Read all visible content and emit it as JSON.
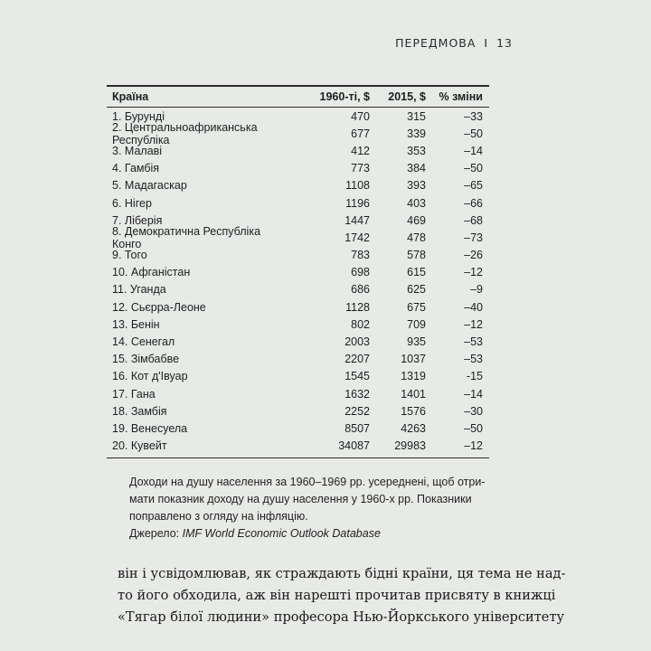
{
  "running_head": {
    "section": "ПЕРЕДМОВА",
    "separator": "I",
    "page_number": "13"
  },
  "table": {
    "columns": [
      "Країна",
      "1960-ті, $",
      "2015, $",
      "% зміни"
    ],
    "rows": [
      [
        "1. Бурунді",
        "470",
        "315",
        "–33"
      ],
      [
        "2. Центральноафриканська Республіка",
        "677",
        "339",
        "–50"
      ],
      [
        "3. Малаві",
        "412",
        "353",
        "–14"
      ],
      [
        "4. Гамбія",
        "773",
        "384",
        "–50"
      ],
      [
        "5. Мадагаскар",
        "1108",
        "393",
        "–65"
      ],
      [
        "6. Нігер",
        "1196",
        "403",
        "–66"
      ],
      [
        "7. Ліберія",
        "1447",
        "469",
        "–68"
      ],
      [
        "8. Демократична Республіка Конго",
        "1742",
        "478",
        "–73"
      ],
      [
        "9. Того",
        "783",
        "578",
        "–26"
      ],
      [
        "10. Афганістан",
        "698",
        "615",
        "–12"
      ],
      [
        "11. Уганда",
        "686",
        "625",
        "–9"
      ],
      [
        "12. Сьєрра-Леоне",
        "1128",
        "675",
        "–40"
      ],
      [
        "13. Бенін",
        "802",
        "709",
        "–12"
      ],
      [
        "14. Сенегал",
        "2003",
        "935",
        "–53"
      ],
      [
        "15. Зімбабве",
        "2207",
        "1037",
        "–53"
      ],
      [
        "16. Кот д'Івуар",
        "1545",
        "1319",
        "-15"
      ],
      [
        "17. Гана",
        "1632",
        "1401",
        "–14"
      ],
      [
        "18. Замбія",
        "2252",
        "1576",
        "–30"
      ],
      [
        "19. Венесуела",
        "8507",
        "4263",
        "–50"
      ],
      [
        "20. Кувейт",
        "34087",
        "29983",
        "–12"
      ]
    ]
  },
  "note": {
    "lines": [
      "Доходи на душу населення за 1960–1969 рр. усереднені, щоб отри-",
      "мати показник доходу на душу населення у 1960-х рр. Показники",
      "поправлено з огляду на інфляцію."
    ],
    "source_label": "Джерело: ",
    "source_name": "IMF World Economic Outlook Database"
  },
  "body_text": [
    "він і усвідомлював, як страждають бідні країни, ця тема не над-",
    "то його обходила, аж він нарешті прочитав присвяту в книжці",
    "«Тягар білої людини» професора Нью-Йоркського університету"
  ]
}
